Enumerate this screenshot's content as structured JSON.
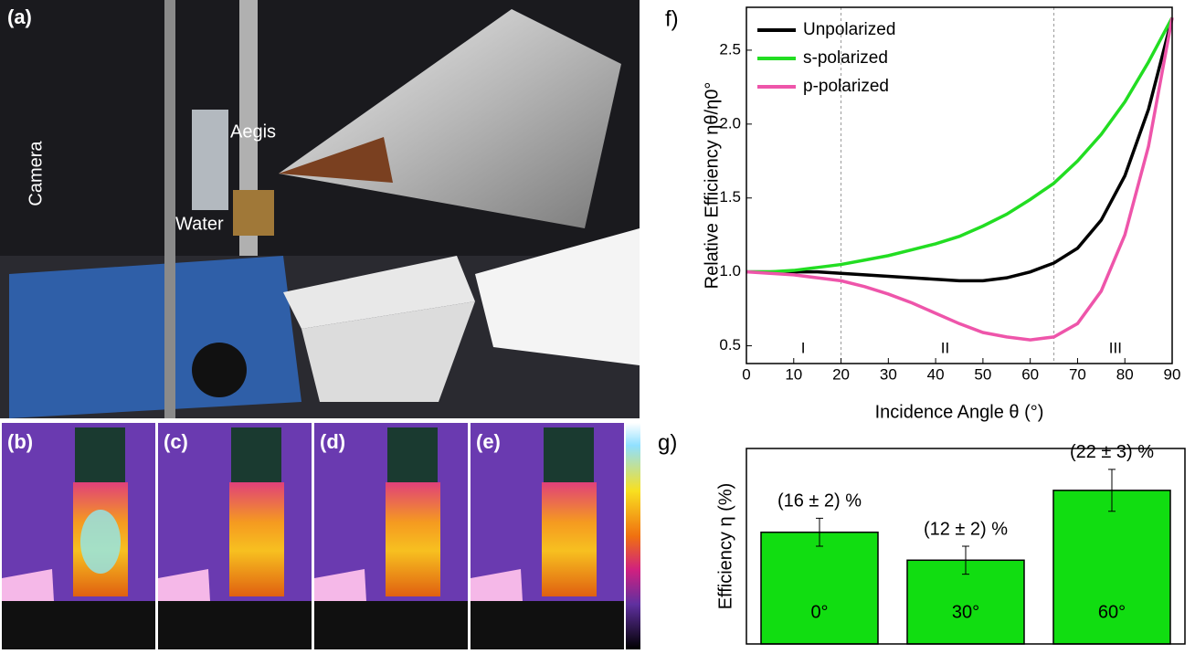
{
  "panels": {
    "photo": {
      "label": "(a)",
      "annotations": [
        "Camera",
        "Aegis",
        "Water"
      ]
    },
    "thermal": [
      "(b)",
      "(c)",
      "(d)",
      "(e)"
    ]
  },
  "chart_data": [
    {
      "type": "line",
      "panel_label": "f)",
      "x_label": "Incidence Angle θ (°)",
      "y_label": "Relative Efficiency ηθ/η0°",
      "x": [
        0,
        5,
        10,
        15,
        20,
        25,
        30,
        35,
        40,
        45,
        50,
        55,
        60,
        65,
        70,
        75,
        80,
        85,
        90
      ],
      "series": [
        {
          "name": "Unpolarized",
          "color": "#000000",
          "values": [
            1.0,
            1.0,
            1.0,
            1.0,
            0.99,
            0.98,
            0.97,
            0.96,
            0.95,
            0.94,
            0.94,
            0.96,
            1.0,
            1.06,
            1.16,
            1.35,
            1.65,
            2.1,
            2.72
          ]
        },
        {
          "name": "s-polarized",
          "color": "#22dd22",
          "values": [
            1.0,
            1.0,
            1.01,
            1.03,
            1.05,
            1.08,
            1.11,
            1.15,
            1.19,
            1.24,
            1.31,
            1.39,
            1.49,
            1.6,
            1.75,
            1.93,
            2.15,
            2.42,
            2.72
          ]
        },
        {
          "name": "p-polarized",
          "color": "#ee55aa",
          "values": [
            1.0,
            0.99,
            0.98,
            0.96,
            0.94,
            0.9,
            0.85,
            0.79,
            0.72,
            0.65,
            0.59,
            0.56,
            0.54,
            0.56,
            0.65,
            0.87,
            1.25,
            1.85,
            2.72
          ]
        }
      ],
      "xlim": [
        0,
        90
      ],
      "xticks": [
        0,
        10,
        20,
        30,
        40,
        50,
        60,
        70,
        80,
        90
      ],
      "ylim": [
        0.38,
        2.79
      ],
      "yticks": [
        0.5,
        {
          "value": 1.0,
          "label": "1.0"
        },
        1.5,
        {
          "value": 2.0,
          "label": "2.0"
        },
        2.5
      ],
      "vlines": [
        20,
        65
      ],
      "annotations": [
        {
          "text": "I",
          "x": 12
        },
        {
          "text": "II",
          "x": 42
        },
        {
          "text": "III",
          "x": 78
        }
      ],
      "legend": "upper left"
    },
    {
      "type": "bar",
      "panel_label": "g)",
      "y_label": "Efficiency η (%)",
      "categories": [
        "0°",
        "30°",
        "60°"
      ],
      "values": [
        16,
        12,
        22
      ],
      "errors": [
        2,
        2,
        3
      ],
      "value_labels": [
        "(16 ± 2) %",
        "(12 ± 2) %",
        "(22 ± 3) %"
      ],
      "color": "#11dd11",
      "ylim": [
        0,
        28
      ]
    }
  ]
}
